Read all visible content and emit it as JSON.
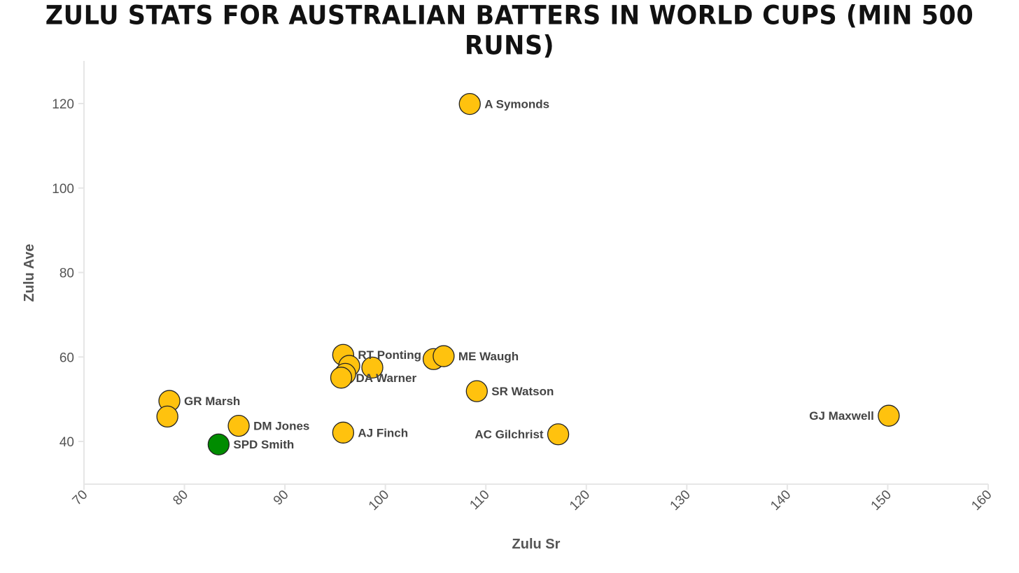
{
  "chart_data": {
    "type": "scatter",
    "title": "Zulu Stats for Australian Batters in World Cups (min 500 runs)",
    "xlabel": "Zulu Sr",
    "ylabel": "Zulu Ave",
    "xlim": [
      70,
      160
    ],
    "ylim": [
      30,
      130
    ],
    "xticks": [
      70,
      80,
      90,
      100,
      110,
      120,
      130,
      140,
      150,
      160
    ],
    "yticks": [
      40,
      60,
      80,
      100,
      120
    ],
    "grid": false,
    "legend": "none",
    "colors": {
      "default": "#FFC20E",
      "highlight": "#008C00",
      "stroke": "#222222"
    },
    "points": [
      {
        "x": 108.4,
        "y": 119.9,
        "label": "A Symonds",
        "label_side": "right"
      },
      {
        "x": 95.8,
        "y": 60.5,
        "label": "RT Ponting",
        "label_side": "right"
      },
      {
        "x": 104.8,
        "y": 59.5,
        "label": "",
        "label_side": "right"
      },
      {
        "x": 105.8,
        "y": 60.2,
        "label": "ME Waugh",
        "label_side": "right"
      },
      {
        "x": 98.7,
        "y": 57.5,
        "label": "",
        "label_side": "right"
      },
      {
        "x": 96.4,
        "y": 57.9,
        "label": "",
        "label_side": "right"
      },
      {
        "x": 96.0,
        "y": 56.0,
        "label": "",
        "label_side": "right"
      },
      {
        "x": 95.6,
        "y": 55.1,
        "label": "DA Warner",
        "label_side": "right"
      },
      {
        "x": 109.1,
        "y": 51.9,
        "label": "SR Watson",
        "label_side": "right"
      },
      {
        "x": 78.5,
        "y": 49.6,
        "label": "GR Marsh",
        "label_side": "right"
      },
      {
        "x": 78.3,
        "y": 45.9,
        "label": "",
        "label_side": "right"
      },
      {
        "x": 150.1,
        "y": 46.1,
        "label": "GJ Maxwell",
        "label_side": "left"
      },
      {
        "x": 85.4,
        "y": 43.7,
        "label": "DM Jones",
        "label_side": "right"
      },
      {
        "x": 95.8,
        "y": 42.1,
        "label": "AJ Finch",
        "label_side": "right"
      },
      {
        "x": 117.2,
        "y": 41.7,
        "label": "AC Gilchrist",
        "label_side": "left"
      },
      {
        "x": 83.4,
        "y": 39.3,
        "label": "SPD Smith",
        "label_side": "right",
        "highlight": true
      }
    ]
  }
}
